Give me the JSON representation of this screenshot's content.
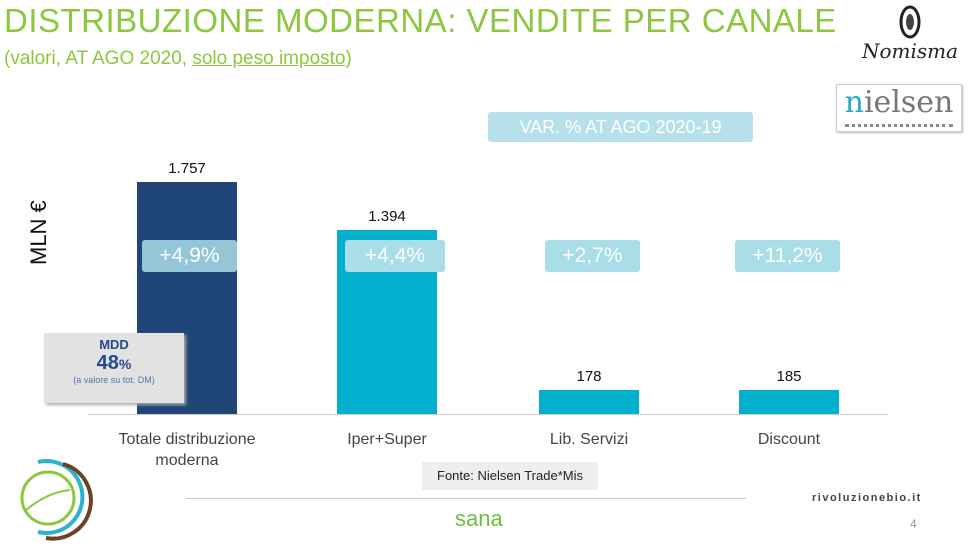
{
  "header": {
    "title": "DISTRIBUZIONE MODERNA: VENDITE PER CANALE",
    "subtitle_prefix": "(valori, AT AGO 2020, ",
    "subtitle_underlined": "solo peso imposto",
    "subtitle_suffix": ")",
    "logo_nomisma": "Nomisma",
    "logo_nielsen_n": "n",
    "logo_nielsen_rest": "ielsen"
  },
  "chart_data": {
    "type": "bar",
    "title": "DISTRIBUZIONE MODERNA: VENDITE PER CANALE",
    "ylabel": "MLN €",
    "xlabel": "",
    "categories": [
      "Totale distribuzione moderna",
      "Iper+Super",
      "Lib. Servizi",
      "Discount"
    ],
    "values": [
      1757,
      1394,
      178,
      185
    ],
    "value_labels": [
      "1.757",
      "1.394",
      "178",
      "185"
    ],
    "colors": [
      "#1f4677",
      "#00b0cc",
      "#00b0cc",
      "#00b0cc"
    ],
    "ylim": [
      0,
      1757
    ],
    "grid": false,
    "variation_title": "VAR. % AT AGO 2020-19",
    "variations": [
      "+4,9%",
      "+4,4%",
      "+2,7%",
      "+11,2%"
    ]
  },
  "callout": {
    "title": "MDD",
    "value": "48",
    "unit": "%",
    "note": "(a valore su tot. DM)"
  },
  "footer": {
    "source": "Fonte: Nielsen Trade*Mis",
    "site": "rivoluzionebio.it",
    "page": "4",
    "logo_sana": "sana"
  }
}
